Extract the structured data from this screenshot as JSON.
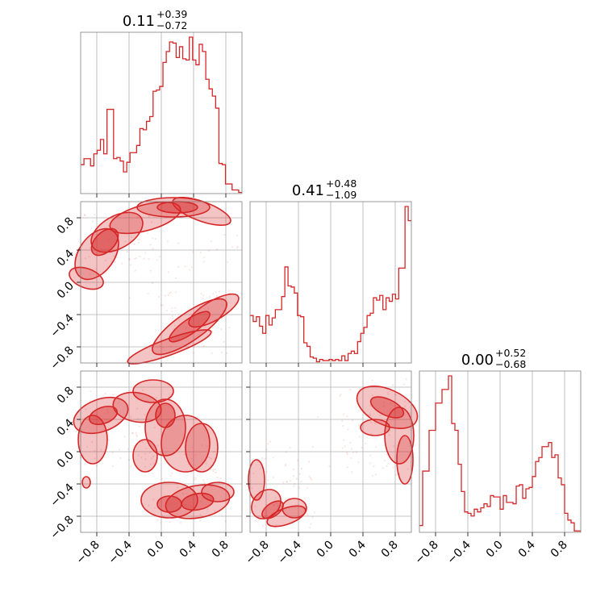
{
  "chart_data": {
    "type": "corner",
    "axis_range": [
      -1,
      1
    ],
    "ticks": [
      -0.8,
      -0.4,
      0.0,
      0.4,
      0.8
    ],
    "tick_labels": [
      "−0.8",
      "−0.4",
      "0.0",
      "0.4",
      "0.8"
    ],
    "color": "#d62728",
    "grid": true,
    "titles": [
      {
        "median": "0.11",
        "plus": "+0.39",
        "minus": "−0.72"
      },
      {
        "median": "0.41",
        "plus": "+0.48",
        "minus": "−1.09"
      },
      {
        "median": "0.00",
        "plus": "+0.52",
        "minus": "−0.68"
      }
    ],
    "histograms": [
      {
        "bins": [
          -1.0,
          1.0
        ],
        "values": [
          24,
          29,
          29,
          23,
          33,
          36,
          45,
          33,
          70,
          70,
          29,
          30,
          27,
          18,
          26,
          34,
          34,
          40,
          54,
          53,
          60,
          64,
          85,
          86,
          89,
          109,
          118,
          126,
          125,
          113,
          122,
          112,
          111,
          130,
          111,
          107,
          124,
          118,
          95,
          87,
          81,
          71,
          25,
          24,
          8,
          8,
          3,
          3,
          1
        ]
      },
      {
        "bins": [
          -1.0,
          1.0
        ],
        "values": [
          40,
          35,
          39,
          31,
          25,
          40,
          32,
          38,
          45,
          45,
          56,
          81,
          65,
          64,
          59,
          40,
          39,
          17,
          14,
          5,
          4,
          1,
          3,
          2,
          2,
          3,
          2,
          3,
          2,
          6,
          2,
          8,
          10,
          8,
          18,
          25,
          30,
          40,
          42,
          55,
          53,
          57,
          45,
          55,
          52,
          58,
          54,
          80,
          80,
          132,
          120
        ]
      },
      {
        "bins": [
          -1.0,
          1.0
        ],
        "values": [
          5,
          45,
          45,
          75,
          75,
          95,
          95,
          105,
          105,
          115,
          80,
          75,
          50,
          30,
          15,
          14,
          12,
          17,
          15,
          18,
          21,
          19,
          27,
          26,
          26,
          17,
          27,
          22,
          22,
          21,
          34,
          35,
          25,
          32,
          33,
          41,
          52,
          55,
          63,
          63,
          66,
          55,
          57,
          40,
          35,
          14,
          9,
          7,
          1,
          1
        ]
      }
    ],
    "pairs": [
      {
        "x_param": 1,
        "y_param": 2
      },
      {
        "x_param": 1,
        "y_param": 3
      },
      {
        "x_param": 2,
        "y_param": 3
      }
    ]
  }
}
